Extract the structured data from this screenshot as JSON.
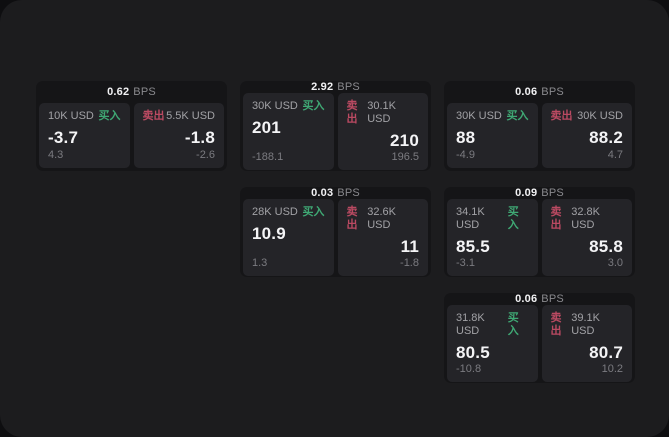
{
  "labels": {
    "bps": "BPS",
    "buy": "买入",
    "sell": "卖出"
  },
  "colors": {
    "buy": "#3fa874",
    "sell": "#bb4a62"
  },
  "cards": [
    {
      "row": 1,
      "col": 1,
      "bps": "0.62",
      "buy": {
        "amount": "10K USD",
        "price": "-3.7",
        "delta": "4.3"
      },
      "sell": {
        "amount": "5.5K USD",
        "price": "-1.8",
        "delta": "-2.6"
      }
    },
    {
      "row": 1,
      "col": 2,
      "bps": "2.92",
      "buy": {
        "amount": "30K USD",
        "price": "201",
        "delta": "-188.1"
      },
      "sell": {
        "amount": "30.1K USD",
        "price": "210",
        "delta": "196.5"
      }
    },
    {
      "row": 1,
      "col": 3,
      "bps": "0.06",
      "buy": {
        "amount": "30K USD",
        "price": "88",
        "delta": "-4.9"
      },
      "sell": {
        "amount": "30K USD",
        "price": "88.2",
        "delta": "4.7"
      }
    },
    {
      "row": 2,
      "col": 2,
      "bps": "0.03",
      "buy": {
        "amount": "28K USD",
        "price": "10.9",
        "delta": "1.3"
      },
      "sell": {
        "amount": "32.6K USD",
        "price": "11",
        "delta": "-1.8"
      }
    },
    {
      "row": 2,
      "col": 3,
      "bps": "0.09",
      "buy": {
        "amount": "34.1K USD",
        "price": "85.5",
        "delta": "-3.1"
      },
      "sell": {
        "amount": "32.8K USD",
        "price": "85.8",
        "delta": "3.0"
      }
    },
    {
      "row": 3,
      "col": 3,
      "bps": "0.06",
      "buy": {
        "amount": "31.8K USD",
        "price": "80.5",
        "delta": "-10.8"
      },
      "sell": {
        "amount": "39.1K USD",
        "price": "80.7",
        "delta": "10.2"
      }
    }
  ]
}
